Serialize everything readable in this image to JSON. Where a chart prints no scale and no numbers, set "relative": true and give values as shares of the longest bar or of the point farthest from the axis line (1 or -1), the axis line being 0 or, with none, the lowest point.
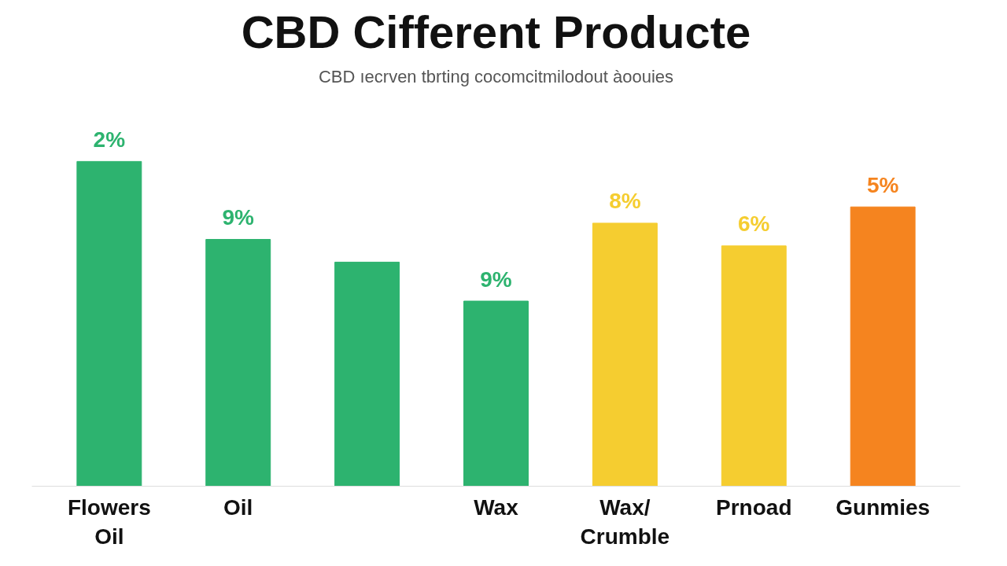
{
  "chart_data": {
    "type": "bar",
    "title": "CBD Cifferent Producte",
    "subtitle": "CBD ıecrven tbrting cocomcitmilodout àoouies",
    "categories": [
      "Flowers\nOil",
      "Oil",
      null,
      "Wax",
      "Wax/\nCrumble",
      "Prnoad",
      "Gunmies"
    ],
    "values": [
      1.0,
      0.76,
      0.69,
      0.57,
      0.81,
      0.74,
      0.86
    ],
    "colors": [
      "#2db36f",
      "#2db36f",
      "#2db36f",
      "#2db36f",
      "#f5cd30",
      "#f5cd30",
      "#f5841f"
    ],
    "annotations": [
      {
        "text": "2%",
        "x": "Flowers\nOil",
        "y": 1.0
      },
      {
        "text": "9%",
        "x": "Oil",
        "y": 0.76
      },
      {
        "text": "9%",
        "x": "Wax",
        "y": 0.57
      },
      {
        "text": "8%",
        "x": "Wax/\nCrumble",
        "y": 0.81
      },
      {
        "text": "6%",
        "x": "Prnoad",
        "y": 0.74
      },
      {
        "text": "5%",
        "x": "Gunmies",
        "y": 0.86
      }
    ],
    "relative": true
  }
}
